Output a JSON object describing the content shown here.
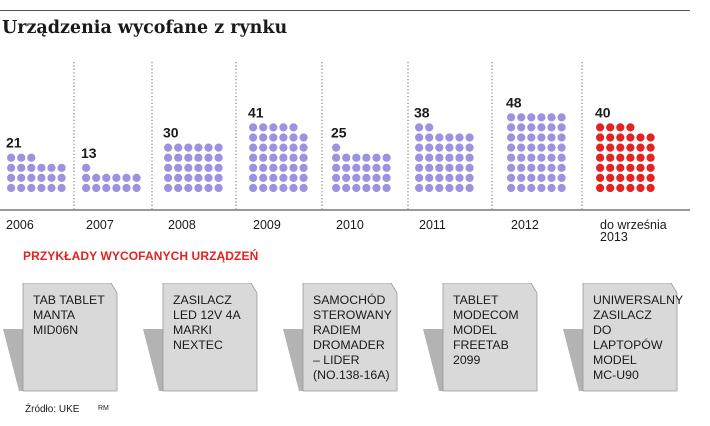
{
  "title": "Urządzenia wycofane z rynku",
  "chart_data": {
    "type": "bar",
    "encoding": "dot-matrix",
    "title": "Urządzenia wycofane z rynku",
    "categories": [
      "2006",
      "2007",
      "2008",
      "2009",
      "2010",
      "2011",
      "2012",
      "do września 2013"
    ],
    "category_lines": [
      [
        "2006"
      ],
      [
        "2007"
      ],
      [
        "2008"
      ],
      [
        "2009"
      ],
      [
        "2010"
      ],
      [
        "2011"
      ],
      [
        "2012"
      ],
      [
        "do września",
        "2013"
      ]
    ],
    "values": [
      21,
      13,
      30,
      41,
      25,
      38,
      48,
      40
    ],
    "colors": {
      "default": "#9b92e0",
      "highlight": "#e32221",
      "highlight_categories": [
        "do września 2013"
      ]
    },
    "grid": false,
    "legend": "none"
  },
  "examples": {
    "heading": "PRZYKŁADY WYCOFANYCH URZĄDZEŃ",
    "items": [
      {
        "lines": [
          "TAB TABLET",
          "MANTA",
          "MID06N"
        ]
      },
      {
        "lines": [
          "ZASILACZ",
          "LED 12V 4A",
          "MARKI",
          "NEXTEC"
        ]
      },
      {
        "lines": [
          "SAMOCHÓD",
          "STEROWANY",
          "RADIEM",
          "DROMADER",
          "– LIDER",
          "(NO.138-16A)"
        ]
      },
      {
        "lines": [
          "TABLET",
          "MODECOM",
          "MODEL",
          "FREETAB",
          "2099"
        ]
      },
      {
        "lines": [
          "UNIWERSALNY",
          "ZASILACZ",
          "DO LAPTOPÓW",
          "MODEL",
          "MC-U90"
        ]
      }
    ],
    "colors": {
      "card": "#d9d9d9",
      "card_shadow": "#b3b3b3",
      "card_border": "#999999"
    }
  },
  "footer": {
    "source": "Źródło: UKE",
    "credit": "RM"
  }
}
